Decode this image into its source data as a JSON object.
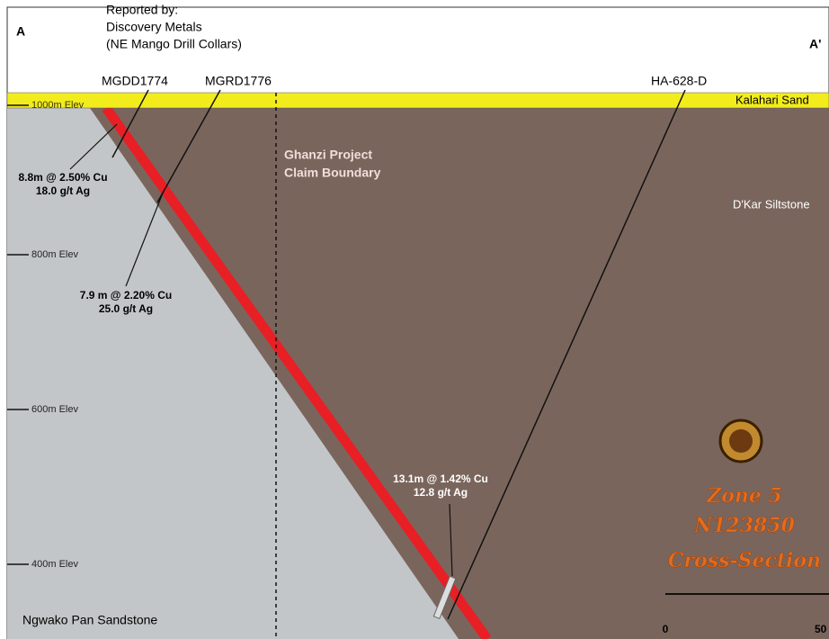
{
  "header": {
    "section_start": "A",
    "section_end": "A'",
    "reported_by": [
      "Reported by:",
      "Discovery Metals",
      "(NE Mango Drill Collars)"
    ]
  },
  "drill_holes": [
    {
      "label": "MGDD1774"
    },
    {
      "label": "MGRD1776"
    },
    {
      "label": "HA-628-D"
    }
  ],
  "intercepts": [
    {
      "lines": [
        "8.8m @ 2.50% Cu",
        "18.0 g/t Ag"
      ]
    },
    {
      "lines": [
        "7.9 m @ 2.20% Cu",
        "25.0 g/t Ag"
      ]
    },
    {
      "lines": [
        "13.1m @ 1.42% Cu",
        "12.8 g/t Ag"
      ]
    }
  ],
  "elevations": [
    "1000m Elev",
    "800m Elev",
    "600m Elev",
    "400m Elev"
  ],
  "units": {
    "top": "Kalahari Sand",
    "right": "D'Kar Siltstone",
    "left": "Ngwako Pan Sandstone"
  },
  "boundary": [
    "Ghanzi Project",
    "Claim Boundary"
  ],
  "section_title": [
    "Zone 5",
    "N123850",
    "Cross-Section"
  ],
  "scale_bar": [
    "0",
    "50"
  ]
}
